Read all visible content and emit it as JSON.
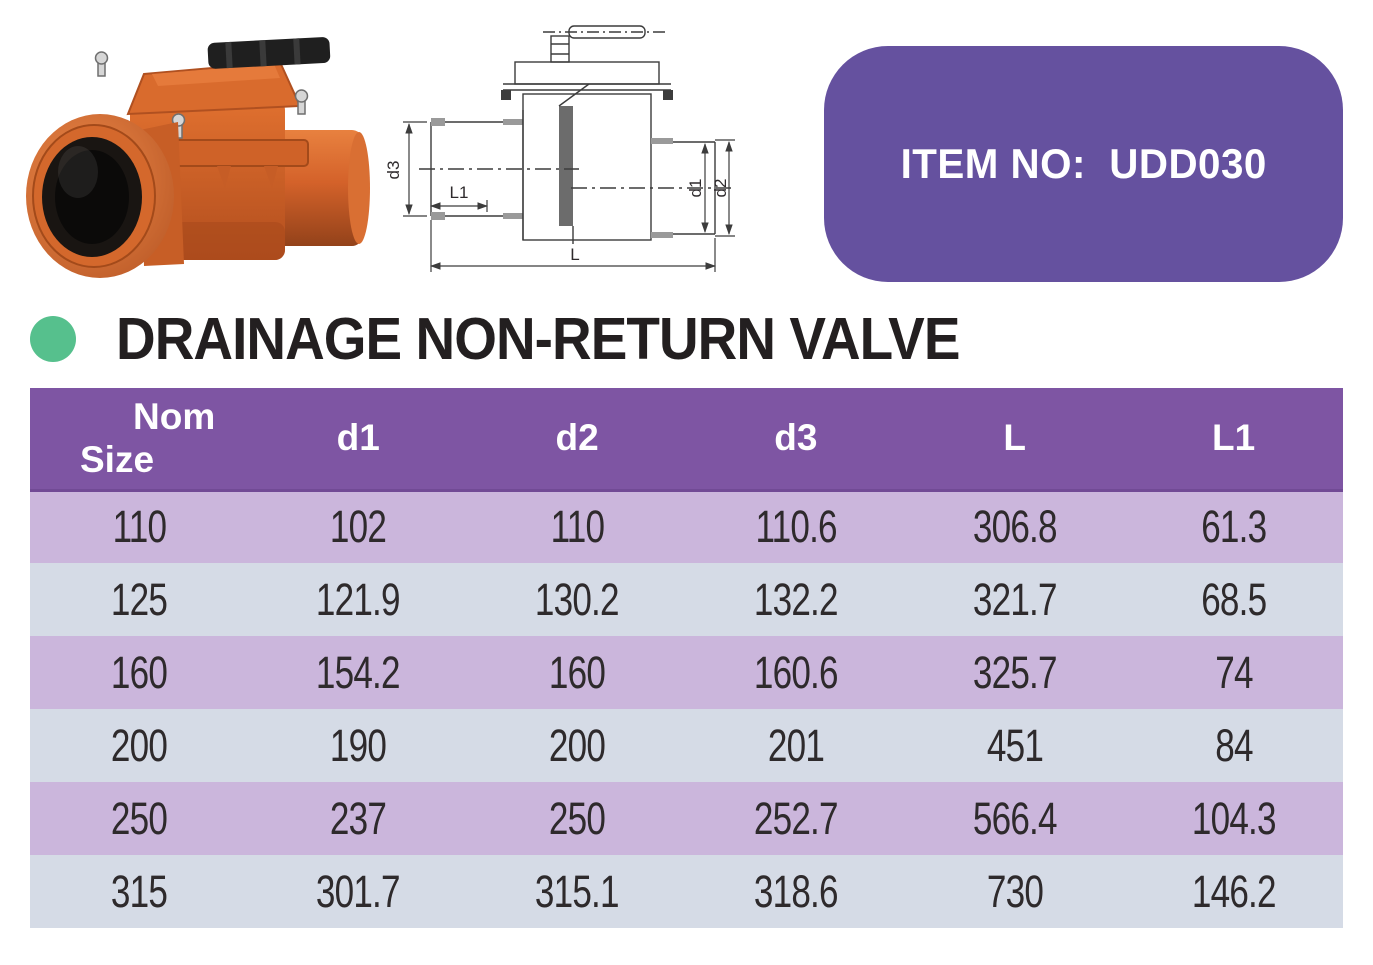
{
  "item_badge": {
    "label": "ITEM NO:  UDD030"
  },
  "title": {
    "text": "DRAINAGE NON-RETURN VALVE"
  },
  "product": {
    "photo_alt": "orange-drainage-non-return-valve-photo",
    "diagram_alt": "valve-dimension-drawing"
  },
  "diagram_labels": {
    "d3": "d3",
    "l1": "L1",
    "l": "L",
    "d1": "d1",
    "d2": "d2"
  },
  "table": {
    "first_header": {
      "line1": "Nom",
      "line2": "Size"
    },
    "columns": [
      "d1",
      "d2",
      "d3",
      "L",
      "L1"
    ],
    "rows": [
      [
        "110",
        "102",
        "110",
        "110.6",
        "306.8",
        "61.3"
      ],
      [
        "125",
        "121.9",
        "130.2",
        "132.2",
        "321.7",
        "68.5"
      ],
      [
        "160",
        "154.2",
        "160",
        "160.6",
        "325.7",
        "74"
      ],
      [
        "200",
        "190",
        "200",
        "201",
        "451",
        "84"
      ],
      [
        "250",
        "237",
        "250",
        "252.7",
        "566.4",
        "104.3"
      ],
      [
        "315",
        "301.7",
        "315.1",
        "318.6",
        "730",
        "146.2"
      ]
    ]
  },
  "colors": {
    "header_purple": "#7e55a3",
    "badge_purple": "#65519f",
    "row_purple": "#cbb6dc",
    "row_blue": "#d5dbe6",
    "bullet_green": "#56c08d",
    "valve_orange": "#d4622a"
  }
}
